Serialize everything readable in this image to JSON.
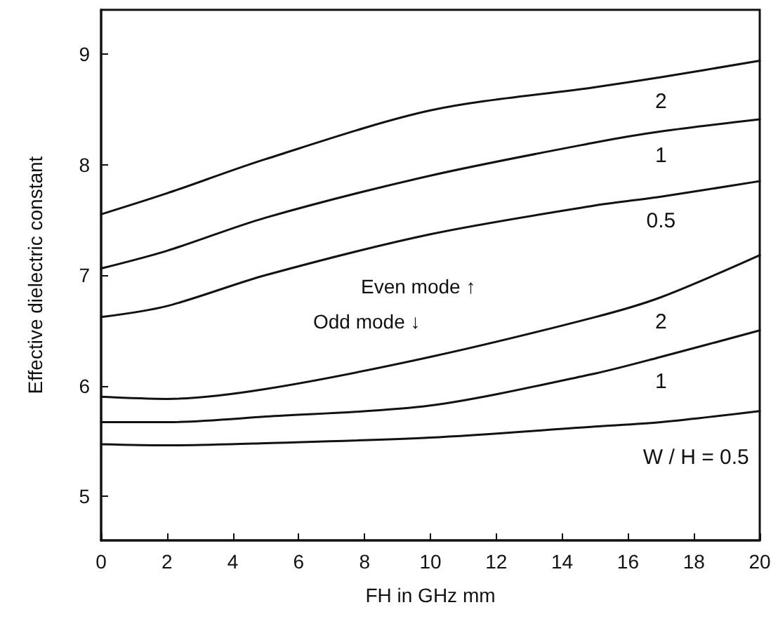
{
  "chart_data": {
    "type": "line",
    "xlabel": "FH in GHz mm",
    "ylabel": "Effective dielectric constant",
    "x": [
      0,
      2,
      5,
      10,
      15,
      17,
      20
    ],
    "series": [
      {
        "name": "2",
        "color": "#111111",
        "values": [
          7.55,
          7.74,
          8.05,
          8.49,
          8.7,
          8.79,
          8.94
        ]
      },
      {
        "name": "1",
        "color": "#111111",
        "values": [
          7.06,
          7.22,
          7.52,
          7.9,
          8.2,
          8.3,
          8.41
        ]
      },
      {
        "name": "0.5",
        "color": "#111111",
        "values": [
          6.62,
          6.72,
          7.0,
          7.37,
          7.63,
          7.71,
          7.85
        ]
      },
      {
        "name": "2",
        "color": "#111111",
        "values": [
          5.9,
          5.88,
          5.97,
          6.26,
          6.62,
          6.8,
          7.18
        ]
      },
      {
        "name": "1",
        "color": "#111111",
        "values": [
          5.67,
          5.67,
          5.72,
          5.82,
          6.11,
          6.26,
          6.5
        ]
      },
      {
        "name": "W / H = 0.5",
        "color": "#111111",
        "values": [
          5.47,
          5.46,
          5.48,
          5.53,
          5.63,
          5.67,
          5.77
        ]
      }
    ],
    "annotations": [
      "Even mode ↑",
      "Odd mode ↓"
    ],
    "xlim": [
      0,
      20
    ],
    "xticks": [
      0,
      2,
      4,
      6,
      8,
      10,
      12,
      14,
      16,
      18,
      20
    ],
    "ylim": [
      4.6,
      9.4
    ],
    "yticks": [
      5,
      6,
      7,
      8,
      9
    ],
    "legend": false,
    "grid": false,
    "marker": "none",
    "line_style": "solid"
  }
}
